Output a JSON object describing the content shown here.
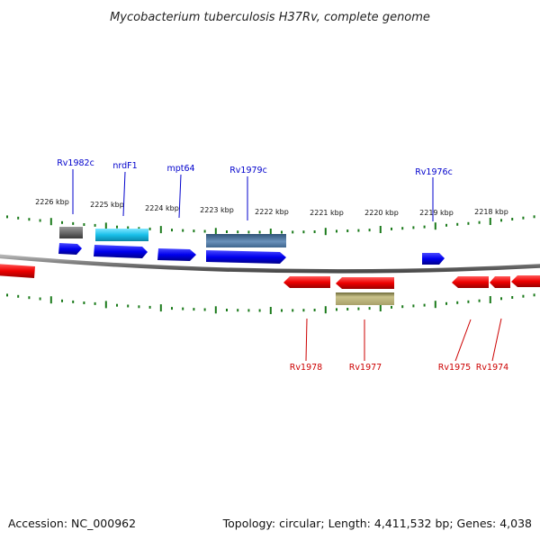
{
  "title": "Mycobacterium tuberculosis H37Rv, complete genome",
  "footer": {
    "accession": "Accession: NC_000962",
    "summary": "Topology: circular; Length: 4,411,532 bp; Genes: 4,038"
  },
  "colors": {
    "forward_label": "#0000cc",
    "reverse_label": "#cc0000",
    "tick": "#1a7a1a",
    "backbone": "#888888",
    "cds_forward": "#0000ee",
    "cds_reverse": "#ee0000"
  },
  "scale_labels": [
    "2226 kbp",
    "2225 kbp",
    "2224 kbp",
    "2223 kbp",
    "2222 kbp",
    "2221 kbp",
    "2220 kbp",
    "2219 kbp",
    "2218 kbp"
  ],
  "forward_gene_labels": [
    "Rv1982c",
    "nrdF1",
    "mpt64",
    "Rv1979c",
    "Rv1976c"
  ],
  "reverse_gene_labels": [
    "Rv1978",
    "Rv1977",
    "Rv1975",
    "Rv1974"
  ]
}
